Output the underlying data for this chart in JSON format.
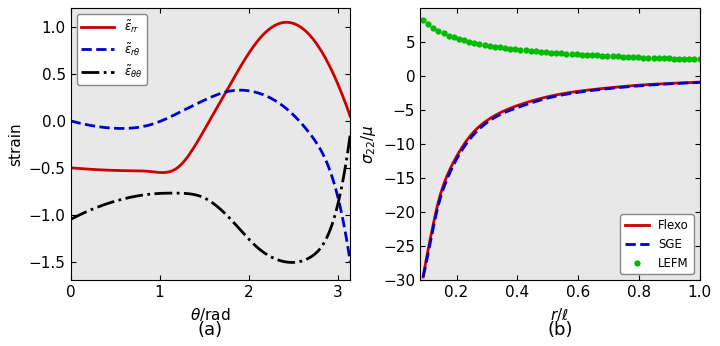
{
  "panel_a": {
    "xlabel": "$\\theta$/rad",
    "ylabel": "strain",
    "label_a": "(a)",
    "eps_rr_knots_x": [
      0,
      0.3,
      0.6,
      0.9,
      1.2,
      1.5,
      1.8,
      2.1,
      2.4,
      2.7,
      3.0,
      3.14159
    ],
    "eps_rr_knots_y": [
      -0.5,
      -0.52,
      -0.53,
      -0.54,
      -0.5,
      -0.1,
      0.4,
      0.85,
      1.05,
      0.9,
      0.4,
      0.05
    ],
    "eps_rtheta_knots_x": [
      0,
      0.3,
      0.6,
      0.9,
      1.2,
      1.5,
      1.8,
      2.1,
      2.4,
      2.7,
      3.0,
      3.14159
    ],
    "eps_rtheta_knots_y": [
      0.0,
      -0.06,
      -0.08,
      -0.04,
      0.08,
      0.22,
      0.32,
      0.3,
      0.15,
      -0.15,
      -0.8,
      -1.5
    ],
    "eps_tt_knots_x": [
      0,
      0.3,
      0.6,
      0.9,
      1.2,
      1.5,
      1.8,
      2.1,
      2.4,
      2.7,
      3.0,
      3.14159
    ],
    "eps_tt_knots_y": [
      -1.05,
      -0.92,
      -0.83,
      -0.78,
      -0.77,
      -0.82,
      -1.05,
      -1.35,
      -1.5,
      -1.45,
      -0.9,
      -0.15
    ],
    "xlim": [
      0,
      3.14159
    ],
    "ylim": [
      -1.7,
      1.2
    ],
    "xticks": [
      0,
      1,
      2,
      3
    ],
    "yticks": [
      -1.5,
      -1.0,
      -0.5,
      0.0,
      0.5,
      1.0
    ],
    "axes_facecolor": "#e8e8e8"
  },
  "panel_b": {
    "xlabel": "$r/\\ell$",
    "ylabel": "$\\sigma_{22}/\\mu$",
    "label_b": "(b)",
    "r_pts": [
      0.09,
      0.1,
      0.12,
      0.14,
      0.17,
      0.2,
      0.25,
      0.3,
      0.4,
      0.5,
      0.6,
      0.7,
      0.8,
      0.9,
      1.0
    ],
    "flexo_pts": [
      -29.5,
      -27.0,
      -22.5,
      -18.5,
      -14.5,
      -11.8,
      -8.5,
      -6.5,
      -4.3,
      -3.0,
      -2.2,
      -1.7,
      -1.3,
      -1.05,
      -0.85
    ],
    "sge_pts": [
      -29.5,
      -27.5,
      -23.0,
      -19.0,
      -15.0,
      -12.2,
      -8.9,
      -6.8,
      -4.6,
      -3.2,
      -2.35,
      -1.8,
      -1.4,
      -1.1,
      -0.9
    ],
    "lefm_r_start": 0.09,
    "lefm_r_end": 1.0,
    "lefm_n_dots": 55,
    "lefm_C": 2.5,
    "xlim": [
      0.08,
      1.0
    ],
    "ylim": [
      -30,
      10
    ],
    "xticks": [
      0.2,
      0.4,
      0.6,
      0.8,
      1.0
    ],
    "yticks": [
      -30,
      -25,
      -20,
      -15,
      -10,
      -5,
      0,
      5
    ],
    "axes_facecolor": "#e8e8e8"
  },
  "background_color": "#ffffff",
  "font_size": 11,
  "label_fontsize": 13,
  "linewidth": 2.0,
  "color_red": "#cc0000",
  "color_blue": "#0000cc",
  "color_green": "#00bb00",
  "color_black": "#000000"
}
